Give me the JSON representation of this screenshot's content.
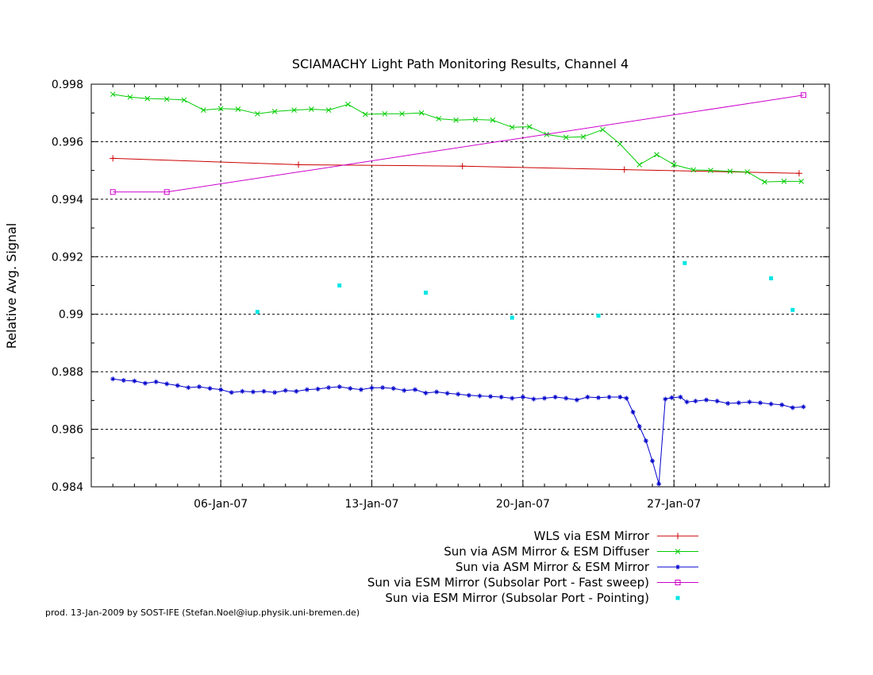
{
  "chart_data": {
    "type": "line",
    "title": "SCIAMACHY Light Path Monitoring Results, Channel 4",
    "ylabel": "Relative Avg. Signal",
    "xlabel": "",
    "xlim": [
      -1.0,
      33.2
    ],
    "ylim": [
      0.984,
      0.998
    ],
    "y_ticks": [
      0.984,
      0.986,
      0.988,
      0.99,
      0.992,
      0.994,
      0.996,
      0.998
    ],
    "y_tick_labels": [
      "0.984",
      "0.986",
      "0.988",
      "0.99",
      "0.992",
      "0.994",
      "0.996",
      "0.998"
    ],
    "x_ticks": [
      5,
      12,
      19,
      26
    ],
    "x_tick_labels": [
      "06-Jan-07",
      "13-Jan-07",
      "20-Jan-07",
      "27-Jan-07"
    ],
    "grid": true,
    "legend_position": "below-right",
    "series": [
      {
        "name": "WLS via ESM Mirror",
        "color": "#cc0000",
        "style": "line-plus",
        "x": [
          0.0,
          8.6,
          16.2,
          23.7,
          31.8
        ],
        "y": [
          0.99542,
          0.9952,
          0.99515,
          0.99503,
          0.9949
        ]
      },
      {
        "name": "Sun via ASM Mirror & ESM Diffuser",
        "color": "#00cc00",
        "style": "line-cross",
        "x": [
          0.0,
          0.8,
          1.6,
          2.5,
          3.3,
          4.2,
          5.0,
          5.8,
          6.7,
          7.5,
          8.4,
          9.2,
          10.0,
          10.9,
          11.7,
          12.6,
          13.4,
          14.3,
          15.1,
          15.9,
          16.8,
          17.6,
          18.5,
          19.3,
          20.1,
          21.0,
          21.8,
          22.7,
          23.5,
          24.4,
          25.2,
          26.0,
          26.9,
          27.7,
          28.6,
          29.4,
          30.2,
          31.1,
          31.9
        ],
        "y": [
          0.99765,
          0.99755,
          0.9975,
          0.99748,
          0.99745,
          0.9971,
          0.99715,
          0.99713,
          0.99697,
          0.99705,
          0.9971,
          0.99713,
          0.9971,
          0.9973,
          0.99695,
          0.99697,
          0.99697,
          0.997,
          0.9968,
          0.99675,
          0.99677,
          0.99675,
          0.9965,
          0.99652,
          0.99625,
          0.99615,
          0.99617,
          0.99642,
          0.99592,
          0.9952,
          0.99555,
          0.9952,
          0.99502,
          0.995,
          0.99497,
          0.99495,
          0.9946,
          0.99462,
          0.99462
        ]
      },
      {
        "name": "Sun via ASM Mirror & ESM Mirror",
        "color": "#0000cc",
        "style": "line-star",
        "x": [
          0.0,
          0.5,
          1.0,
          1.5,
          2.0,
          2.5,
          3.0,
          3.5,
          4.0,
          4.5,
          5.0,
          5.5,
          6.0,
          6.5,
          7.0,
          7.5,
          8.0,
          8.5,
          9.0,
          9.5,
          10.0,
          10.5,
          11.0,
          11.5,
          12.0,
          12.5,
          13.0,
          13.5,
          14.0,
          14.5,
          15.0,
          15.5,
          16.0,
          16.5,
          17.0,
          17.5,
          18.0,
          18.5,
          19.0,
          19.5,
          20.0,
          20.5,
          21.0,
          21.5,
          22.0,
          22.5,
          23.0,
          23.5,
          23.8,
          24.1,
          24.4,
          24.7,
          25.0,
          25.3,
          25.6,
          25.9,
          26.3,
          26.6,
          27.0,
          27.5,
          28.0,
          28.5,
          29.0,
          29.5,
          30.0,
          30.5,
          31.0,
          31.5,
          32.0
        ],
        "y": [
          0.98775,
          0.9877,
          0.98768,
          0.9876,
          0.98765,
          0.98758,
          0.98752,
          0.98745,
          0.98748,
          0.98742,
          0.98738,
          0.98728,
          0.98732,
          0.9873,
          0.98732,
          0.98728,
          0.98735,
          0.98732,
          0.98738,
          0.9874,
          0.98745,
          0.98748,
          0.98742,
          0.98738,
          0.98744,
          0.98745,
          0.98742,
          0.98735,
          0.98738,
          0.98726,
          0.9873,
          0.98725,
          0.98722,
          0.98718,
          0.98716,
          0.98714,
          0.98712,
          0.98708,
          0.98712,
          0.98705,
          0.98708,
          0.98712,
          0.98708,
          0.98702,
          0.98712,
          0.9871,
          0.98712,
          0.98712,
          0.98708,
          0.9866,
          0.9861,
          0.9856,
          0.9849,
          0.9841,
          0.98705,
          0.9871,
          0.98712,
          0.98695,
          0.98698,
          0.98702,
          0.98698,
          0.9869,
          0.98692,
          0.98695,
          0.98692,
          0.98688,
          0.98685,
          0.98675,
          0.98678
        ]
      },
      {
        "name": "Sun via ESM Mirror (Subsolar Port - Fast sweep)",
        "color": "#cc00cc",
        "style": "line-square",
        "x": [
          0.0,
          2.5,
          32.0
        ],
        "y": [
          0.99425,
          0.99425,
          0.99762
        ]
      },
      {
        "name": "Sun via ESM Mirror (Subsolar Port - Pointing)",
        "color": "#00e5e5",
        "style": "points",
        "x": [
          6.7,
          10.5,
          14.5,
          18.5,
          22.5,
          26.5,
          30.5,
          31.5
        ],
        "y": [
          0.99008,
          0.991,
          0.99075,
          0.98988,
          0.98995,
          0.99178,
          0.99125,
          0.99015
        ]
      }
    ],
    "footer": "prod. 13-Jan-2009 by SOST-IFE (Stefan.Noel@iup.physik.uni-bremen.de)"
  }
}
